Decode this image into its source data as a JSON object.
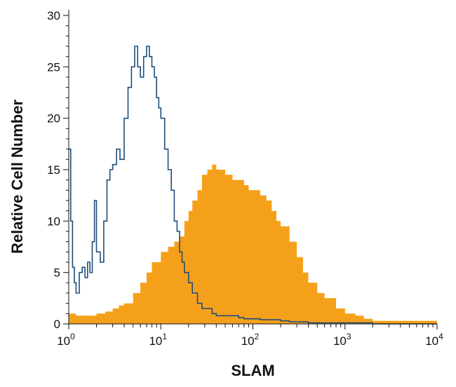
{
  "chart_data": {
    "type": "area",
    "xlabel": "SLAM",
    "ylabel": "Relative Cell Number",
    "xscale": "log",
    "xlim": [
      1,
      10000
    ],
    "ylim": [
      0,
      30
    ],
    "grid": false,
    "x_ticks": [
      {
        "base": "10",
        "exp": "0",
        "value": 1
      },
      {
        "base": "10",
        "exp": "1",
        "value": 10
      },
      {
        "base": "10",
        "exp": "2",
        "value": 100
      },
      {
        "base": "10",
        "exp": "3",
        "value": 1000
      },
      {
        "base": "10",
        "exp": "4",
        "value": 10000
      }
    ],
    "y_ticks": [
      "0",
      "5",
      "10",
      "15",
      "20",
      "25",
      "30"
    ],
    "colors": {
      "isotype": "#1f4e79",
      "stained": "#f5a01a"
    },
    "series": [
      {
        "style": "outline",
        "color": "#1f4e79",
        "x": [
          1,
          1.05,
          1.1,
          1.15,
          1.2,
          1.3,
          1.4,
          1.5,
          1.6,
          1.7,
          1.8,
          1.9,
          2.0,
          2.2,
          2.4,
          2.6,
          2.8,
          3.0,
          3.3,
          3.6,
          4.0,
          4.4,
          4.8,
          5.2,
          5.6,
          6.0,
          6.5,
          7.0,
          7.5,
          8.0,
          8.5,
          9.0,
          9.5,
          10,
          11,
          12,
          13,
          14,
          15,
          16,
          17,
          18,
          20,
          22,
          25,
          28,
          32,
          36,
          40,
          50,
          60,
          70,
          80,
          90,
          100,
          120,
          150,
          200,
          250,
          300,
          400,
          500,
          700,
          1000,
          2000,
          5000,
          10000
        ],
        "y": [
          17,
          10,
          5.5,
          4,
          3,
          5,
          5.5,
          4.5,
          6,
          5,
          8,
          12,
          7,
          6,
          10,
          14,
          15,
          15.5,
          17,
          16,
          20,
          23,
          25,
          27,
          25,
          24,
          26,
          27,
          26,
          25,
          24,
          22,
          21,
          20,
          17,
          15,
          13,
          10,
          9,
          7,
          6,
          5,
          4,
          3,
          2,
          1.5,
          1.5,
          1,
          0.8,
          0.8,
          0.8,
          0.6,
          0.5,
          0.5,
          0.5,
          0.4,
          0.4,
          0.3,
          0.2,
          0.2,
          0.1,
          0.1,
          0.1,
          0.1,
          0,
          0,
          0
        ]
      },
      {
        "style": "filled",
        "color": "#f5a01a",
        "x": [
          1,
          1.2,
          1.5,
          2.0,
          2.5,
          3.0,
          3.5,
          4.0,
          5.0,
          6.0,
          7.0,
          8.0,
          10,
          12,
          14,
          16,
          18,
          20,
          22,
          25,
          28,
          32,
          36,
          40,
          45,
          50,
          55,
          60,
          70,
          80,
          90,
          100,
          110,
          120,
          140,
          160,
          180,
          200,
          250,
          300,
          350,
          400,
          500,
          600,
          800,
          1000,
          1300,
          1600,
          2000,
          10000
        ],
        "y": [
          1,
          0.8,
          0.8,
          1,
          1.2,
          1.5,
          1.8,
          2,
          3,
          4,
          5,
          6,
          7,
          7.5,
          8,
          8.5,
          10,
          11,
          12,
          13,
          14.5,
          15,
          15.5,
          15,
          15,
          14.5,
          14.5,
          14,
          14,
          13.5,
          13,
          13,
          13,
          12.5,
          12,
          11,
          10,
          9.5,
          8,
          6.5,
          5,
          4,
          3,
          2.5,
          1.5,
          1,
          0.8,
          0.5,
          0.3,
          0
        ]
      }
    ]
  }
}
